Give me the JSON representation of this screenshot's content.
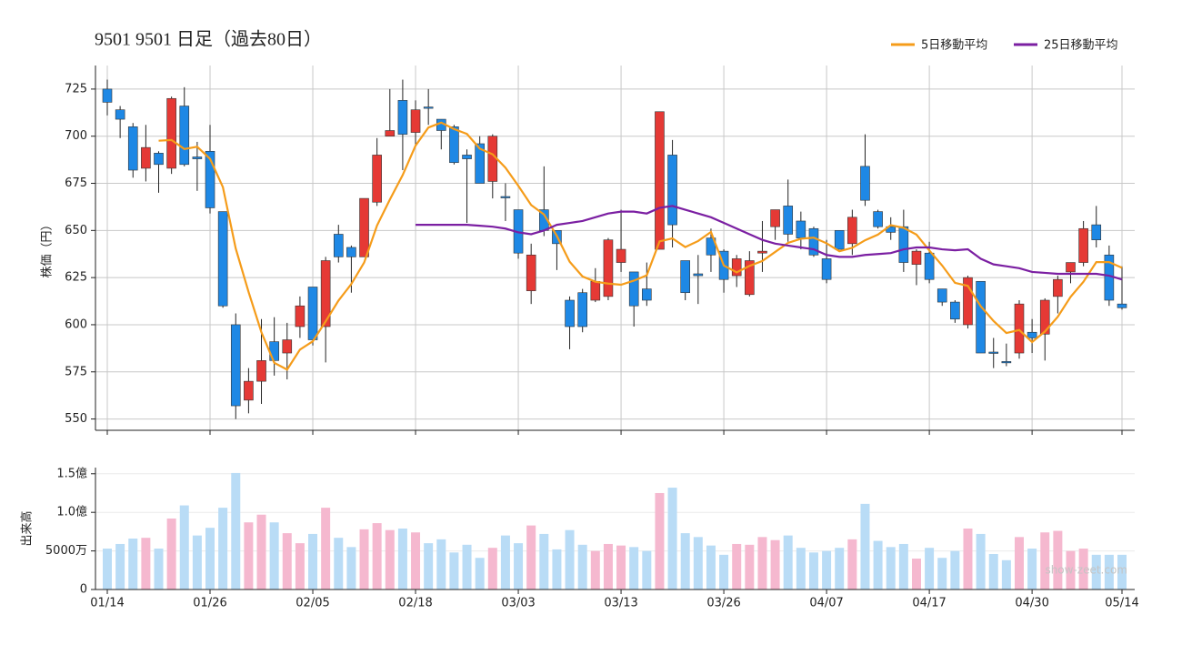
{
  "chart_data": [
    {
      "type": "candlestick",
      "title": "9501 9501  日足（過去80日）",
      "ylabel": "株価（円）",
      "categories": [
        "01/14",
        null,
        null,
        null,
        null,
        null,
        null,
        null,
        "01/26",
        null,
        null,
        null,
        null,
        null,
        null,
        null,
        "02/05",
        null,
        null,
        null,
        null,
        null,
        null,
        null,
        "02/18",
        null,
        null,
        null,
        null,
        null,
        null,
        null,
        "03/03",
        null,
        null,
        null,
        null,
        null,
        null,
        null,
        "03/13",
        null,
        null,
        null,
        null,
        null,
        null,
        null,
        "03/26",
        null,
        null,
        null,
        null,
        null,
        null,
        null,
        "04/07",
        null,
        null,
        null,
        null,
        null,
        null,
        null,
        "04/17",
        null,
        null,
        null,
        null,
        null,
        null,
        null,
        "04/30",
        null,
        null,
        null,
        null,
        null,
        null,
        "05/14"
      ],
      "open": [
        725,
        714,
        705,
        683,
        691,
        683,
        716,
        689,
        692,
        660,
        600,
        560,
        570,
        591,
        585,
        599,
        620,
        599,
        648,
        641,
        636,
        665,
        700,
        719,
        702,
        715.5,
        709,
        705,
        690,
        696,
        676,
        668,
        661,
        618,
        661,
        650,
        613,
        617,
        613,
        615,
        633,
        628,
        619,
        640,
        690,
        634,
        627,
        646,
        639,
        626,
        616,
        638,
        652,
        663,
        655,
        651,
        635,
        650,
        643,
        684,
        660,
        652,
        652,
        632,
        638,
        619,
        612,
        600,
        623,
        585.5,
        580.5,
        585,
        596,
        595,
        615,
        628,
        633,
        653,
        637,
        611
      ],
      "high": [
        730,
        716,
        707,
        706,
        692,
        721,
        726,
        697,
        706,
        660,
        606,
        577,
        603,
        604,
        601,
        615,
        620,
        636,
        653,
        642,
        667,
        699,
        725,
        730,
        719,
        725,
        709,
        706,
        693,
        700,
        701,
        675,
        661,
        643,
        684,
        650,
        615,
        619,
        630,
        646,
        661,
        628,
        633,
        713,
        698,
        634,
        637,
        651,
        640,
        637,
        639,
        655,
        661,
        677,
        660,
        652,
        645,
        650,
        661,
        701,
        661,
        657,
        661,
        640,
        644,
        619,
        613,
        626,
        623,
        593,
        590,
        613,
        603,
        614,
        626,
        633,
        655,
        663,
        642,
        631
      ],
      "low": [
        711,
        699,
        678,
        676,
        670,
        680,
        684,
        671,
        659,
        609,
        550,
        553,
        558,
        573,
        571,
        593,
        589,
        580,
        633,
        617,
        636,
        663,
        700,
        682,
        695,
        706,
        693,
        685,
        654,
        675,
        667,
        655,
        635,
        611,
        647,
        629,
        587,
        596,
        612,
        613,
        628,
        599,
        610,
        640,
        641,
        613,
        611,
        628,
        617,
        620,
        615,
        628,
        645,
        644,
        640,
        636,
        622,
        640,
        637,
        663,
        651,
        645,
        628,
        621,
        622,
        610,
        601,
        598,
        585,
        577,
        578,
        582,
        585,
        581,
        606,
        622,
        631,
        641,
        610,
        608
      ],
      "close": [
        718,
        709,
        682,
        694,
        685,
        720,
        685,
        688,
        662,
        610,
        557,
        570,
        581,
        581,
        592,
        610,
        592,
        634,
        636,
        636,
        667,
        690,
        703,
        701,
        714,
        715,
        703,
        686,
        688,
        675,
        700,
        667.5,
        638,
        637,
        650,
        643,
        599,
        599,
        623,
        645,
        640,
        610,
        613,
        713,
        653,
        617,
        626,
        637,
        624,
        635,
        634,
        639,
        661,
        648,
        646,
        637,
        624,
        640,
        657,
        666,
        652,
        649,
        633,
        639,
        624,
        612,
        603,
        625,
        585,
        585,
        580,
        611,
        593,
        613,
        624,
        633,
        651,
        645,
        613,
        609
      ],
      "up_color": "#e53935",
      "down_color": "#1e88e5",
      "series": [
        {
          "name": "5日移動平均",
          "color": "#f59c1a",
          "values": [
            null,
            null,
            null,
            null,
            697.6,
            698,
            693.2,
            694.4,
            688,
            673,
            640.4,
            617.4,
            596,
            579.8,
            576.2,
            586.8,
            591.2,
            601.8,
            612.8,
            621.6,
            633,
            652.6,
            666.4,
            679.4,
            695,
            704.6,
            707.2,
            703.8,
            701.2,
            693.4,
            690.4,
            683.3,
            673.7,
            663.5,
            658.5,
            647.1,
            633.4,
            625.6,
            622.8,
            621.8,
            621.2,
            623.4,
            626.2,
            644.2,
            645.8,
            641.2,
            644.4,
            649.2,
            631.4,
            627.8,
            631.2,
            633.8,
            638.6,
            643.4,
            645.6,
            646.2,
            643.2,
            639,
            640.8,
            644.8,
            647.8,
            652.8,
            651.4,
            647.8,
            639.4,
            631.4,
            622.2,
            620.6,
            609.8,
            602,
            595.6,
            597.2,
            590.8,
            596.4,
            604.2,
            614.8,
            622.8,
            633.2,
            633.2,
            630.2
          ]
        },
        {
          "name": "25日移動平均",
          "color": "#7b1fa2",
          "values": [
            null,
            null,
            null,
            null,
            null,
            null,
            null,
            null,
            null,
            null,
            null,
            null,
            null,
            null,
            null,
            null,
            null,
            null,
            null,
            null,
            null,
            null,
            null,
            null,
            653,
            653,
            653,
            653,
            653,
            652.5,
            652,
            651,
            649,
            648,
            650,
            653,
            654,
            655,
            657,
            659,
            660,
            660,
            659,
            662,
            663,
            661,
            659,
            657,
            654,
            651,
            648,
            645,
            643,
            642,
            641,
            640,
            637,
            636,
            636,
            637,
            637.5,
            638,
            640,
            641,
            641,
            640,
            639.5,
            640,
            635,
            632,
            631,
            630,
            628,
            627.5,
            627,
            627,
            627,
            627,
            626,
            624
          ]
        }
      ],
      "ylim": [
        544,
        737.5
      ],
      "yticks": [
        550,
        575,
        600,
        625,
        650,
        675,
        700,
        725
      ],
      "grid": true,
      "legend": "top-right"
    },
    {
      "type": "bar",
      "ylabel": "出来高",
      "values": [
        53000000,
        59000000,
        66000000,
        67000000,
        53000000,
        92000000,
        109000000,
        70000000,
        80000000,
        106000000,
        151000000,
        87000000,
        97000000,
        87000000,
        73000000,
        60000000,
        72000000,
        106000000,
        67000000,
        55000000,
        78000000,
        86000000,
        77000000,
        79000000,
        74000000,
        60000000,
        65000000,
        48000000,
        58000000,
        41000000,
        54000000,
        70000000,
        60000000,
        83000000,
        72000000,
        52000000,
        77000000,
        58000000,
        50000000,
        59000000,
        57000000,
        55000000,
        50000000,
        125000000,
        132000000,
        73000000,
        68000000,
        57000000,
        45000000,
        59000000,
        58000000,
        68000000,
        64000000,
        70000000,
        54000000,
        48000000,
        50000000,
        54000000,
        65000000,
        111000000,
        63000000,
        55000000,
        59000000,
        40000000,
        54000000,
        41000000,
        50000000,
        79000000,
        72000000,
        46000000,
        38000000,
        68000000,
        53000000,
        74000000,
        76000000,
        50000000,
        53000000,
        45000000,
        45000000,
        45000000
      ],
      "up_color": "#f5b8cf",
      "down_color": "#b9dcf6",
      "ylim": [
        0,
        158000000
      ],
      "yticks": [
        0,
        {
          "value": 50000000,
          "label": "5000万"
        },
        {
          "value": 100000000,
          "label": "1.0億"
        },
        {
          "value": 150000000,
          "label": "1.5億"
        }
      ],
      "grid": true,
      "watermark": "show-zeet.com"
    }
  ]
}
